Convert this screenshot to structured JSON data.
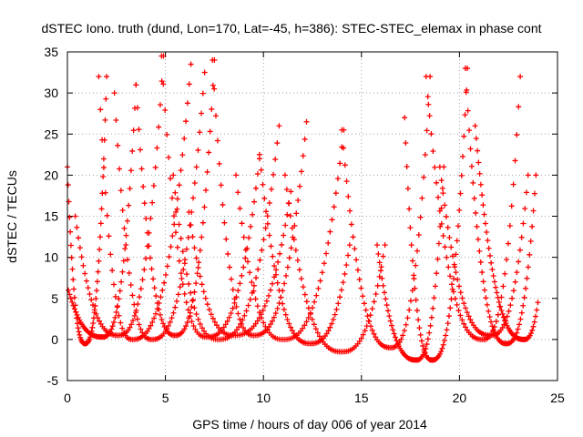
{
  "chart_data": {
    "type": "scatter",
    "title": "dSTEC Iono. truth (dund, Lon=170, Lat=-45, h=386): STEC-STEC_elemax in phase cont",
    "xlabel": "GPS time / hours of day 006 of year 2014",
    "ylabel": "dSTEC  / TECUs",
    "xlim": [
      0,
      25
    ],
    "ylim": [
      -5,
      35
    ],
    "xticks": [
      0,
      5,
      10,
      15,
      20,
      25
    ],
    "yticks": [
      -5,
      0,
      5,
      10,
      15,
      20,
      25,
      30,
      35
    ],
    "grid": true,
    "marker": "+",
    "color": "#ff0000",
    "series": [
      {
        "arcs": [
          {
            "x0": 0.0,
            "x1": 2.0,
            "xmin": 0.9,
            "peakL": 21,
            "peakR": 32,
            "minV": -0.5
          },
          {
            "x0": 0.05,
            "x1": 3.5,
            "xmin": 1.8,
            "peakL": 6,
            "peakR": 31,
            "minV": 0.3
          },
          {
            "x0": 0.4,
            "x1": 4.9,
            "xmin": 2.6,
            "peakL": 15,
            "peakR": 34.5,
            "minV": 0.5
          },
          {
            "x0": 1.6,
            "x1": 6.3,
            "xmin": 3.3,
            "peakL": 32,
            "peakR": 33.5,
            "minV": 0
          },
          {
            "x0": 2.4,
            "x1": 7.0,
            "xmin": 4.3,
            "peakL": 30,
            "peakR": 32.5,
            "minV": 0
          },
          {
            "x0": 3.5,
            "x1": 7.5,
            "xmin": 5.5,
            "peakL": 31,
            "peakR": 34,
            "minV": 0.5
          },
          {
            "x0": 4.8,
            "x1": 9.8,
            "xmin": 7.1,
            "peakL": 34.5,
            "peakR": 22,
            "minV": 0.3
          },
          {
            "x0": 5.4,
            "x1": 10.8,
            "xmin": 7.7,
            "peakL": 20,
            "peakR": 26,
            "minV": 0
          },
          {
            "x0": 6.2,
            "x1": 11.4,
            "xmin": 8.5,
            "peakL": 15.5,
            "peakR": 18,
            "minV": 0.5
          },
          {
            "x0": 7.4,
            "x1": 12.2,
            "xmin": 9.5,
            "peakL": 34,
            "peakR": 26.5,
            "minV": 0.5
          },
          {
            "x0": 8.6,
            "x1": 14.1,
            "xmin": 11.0,
            "peakL": 20,
            "peakR": 25.5,
            "minV": 0
          },
          {
            "x0": 9.8,
            "x1": 14.4,
            "xmin": 12.4,
            "peakL": 22.5,
            "peakR": 11.5,
            "minV": -0.5
          },
          {
            "x0": 11.1,
            "x1": 16.2,
            "xmin": 14.0,
            "peakL": 20,
            "peakR": 11.5,
            "minV": -1.5
          },
          {
            "x0": 14.0,
            "x1": 18.5,
            "xmin": 16.5,
            "peakL": 25.5,
            "peakR": 32,
            "minV": -1
          },
          {
            "x0": 15.8,
            "x1": 19.2,
            "xmin": 17.8,
            "peakL": 11.5,
            "peakR": 21,
            "minV": -2.5
          },
          {
            "x0": 17.2,
            "x1": 20.4,
            "xmin": 18.6,
            "peakL": 27,
            "peakR": 33,
            "minV": -2.5
          },
          {
            "x0": 18.3,
            "x1": 23.1,
            "xmin": 21.2,
            "peakL": 32,
            "peakR": 32,
            "minV": 0
          },
          {
            "x0": 19.0,
            "x1": 23.5,
            "xmin": 21.6,
            "peakL": 21,
            "peakR": 20,
            "minV": 0.5
          },
          {
            "x0": 20.3,
            "x1": 23.9,
            "xmin": 22.4,
            "peakL": 33,
            "peakR": 20,
            "minV": -0.5
          },
          {
            "x0": 20.8,
            "x1": 24.0,
            "xmin": 23.3,
            "peakL": 26,
            "peakR": 4.5,
            "minV": 0
          }
        ]
      }
    ]
  }
}
